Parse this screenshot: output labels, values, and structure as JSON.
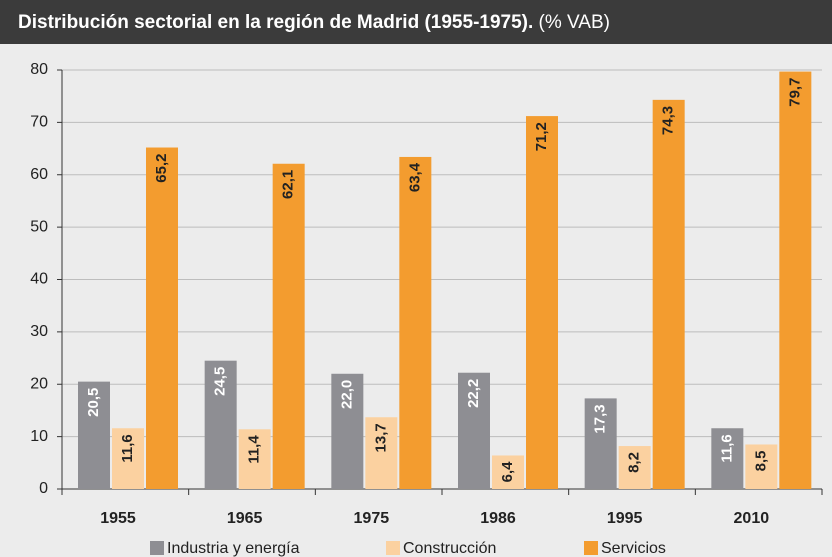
{
  "chart_data": {
    "type": "bar",
    "title": "Distribución sectorial en la región de Madrid (1955-1975).",
    "unit_label": "(% VAB)",
    "categories": [
      "1955",
      "1965",
      "1975",
      "1986",
      "1995",
      "2010"
    ],
    "series": [
      {
        "name": "Industria y energía",
        "color": "#8e8e93",
        "values": [
          20.5,
          24.5,
          22.0,
          22.2,
          17.3,
          11.6
        ],
        "value_labels": [
          "20,5",
          "24,5",
          "22,0",
          "22,2",
          "17,3",
          "11,6"
        ]
      },
      {
        "name": "Construcción",
        "color": "#fbd1a0",
        "values": [
          11.6,
          11.4,
          13.7,
          6.4,
          8.2,
          8.5
        ],
        "value_labels": [
          "11,6",
          "11,4",
          "13,7",
          "6,4",
          "8,2",
          "8,5"
        ]
      },
      {
        "name": "Servicios",
        "color": "#f39c2f",
        "values": [
          65.2,
          62.1,
          63.4,
          71.2,
          74.3,
          79.7
        ],
        "value_labels": [
          "65,2",
          "62,1",
          "63,4",
          "71,2",
          "74,3",
          "79,7"
        ]
      }
    ],
    "ylim": [
      0,
      80
    ],
    "yticks": [
      0,
      10,
      20,
      30,
      40,
      50,
      60,
      70,
      80
    ],
    "grid": true
  }
}
